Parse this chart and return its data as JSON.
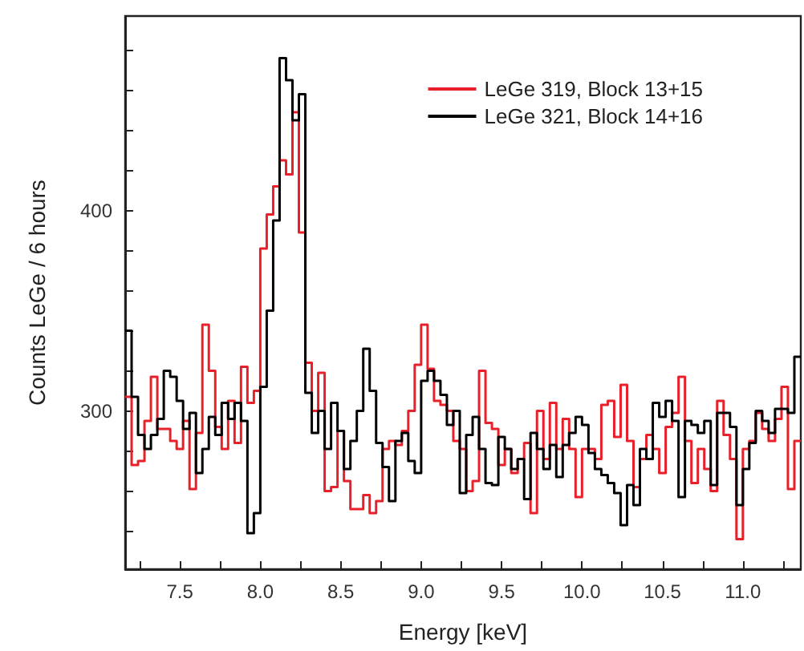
{
  "chart_data": {
    "type": "histogram",
    "xlabel": "Energy [keV]",
    "ylabel": "Counts LeGe / 6 hours",
    "bins": [
      7.16,
      7.2,
      7.24,
      7.28,
      7.32,
      7.36,
      7.4,
      7.44,
      7.48,
      7.52,
      7.56,
      7.6,
      7.64,
      7.68,
      7.72,
      7.76,
      7.8,
      7.84,
      7.88,
      7.92,
      7.96,
      8,
      8.04,
      8.08,
      8.12,
      8.16,
      8.2,
      8.24,
      8.28,
      8.32,
      8.36,
      8.4,
      8.44,
      8.48,
      8.52,
      8.56,
      8.6,
      8.64,
      8.68,
      8.72,
      8.76,
      8.8,
      8.84,
      8.88,
      8.92,
      8.96,
      9,
      9.04,
      9.08,
      9.12,
      9.16,
      9.2,
      9.24,
      9.28,
      9.32,
      9.36,
      9.4,
      9.44,
      9.48,
      9.52,
      9.56,
      9.6,
      9.64,
      9.68,
      9.72,
      9.76,
      9.8,
      9.84,
      9.88,
      9.92,
      9.96,
      10,
      10.04,
      10.08,
      10.12,
      10.16,
      10.2,
      10.24,
      10.28,
      10.32,
      10.36,
      10.4,
      10.44,
      10.48,
      10.52,
      10.56,
      10.6,
      10.64,
      10.68,
      10.72,
      10.76,
      10.8,
      10.84,
      10.88,
      10.92,
      10.96,
      11,
      11.04,
      11.08,
      11.12,
      11.16,
      11.2,
      11.24,
      11.28,
      11.32,
      11.36
    ],
    "series": [
      {
        "name": "LeGe 319, Block 13+15",
        "color": "#e8202a",
        "values": [
          307,
          273,
          275,
          295,
          317,
          291,
          291,
          285,
          281,
          295,
          261,
          289,
          343,
          320,
          292,
          281,
          305,
          284,
          322,
          304,
          310,
          381,
          398,
          412,
          425,
          418,
          449,
          389,
          324,
          300,
          319,
          260,
          262,
          290,
          265,
          251,
          251,
          258,
          249,
          255,
          281,
          285,
          283,
          290,
          300,
          323,
          343,
          321,
          305,
          303,
          300,
          285,
          281,
          260,
          265,
          320,
          294,
          291,
          273,
          281,
          269,
          276,
          284,
          249,
          300,
          276,
          304,
          281,
          296,
          281,
          257,
          281,
          281,
          276,
          303,
          305,
          287,
          313,
          285,
          262,
          276,
          288,
          281,
          269,
          292,
          299,
          317,
          285,
          264,
          281,
          271,
          260,
          305,
          288,
          276,
          236,
          281,
          285,
          299,
          291,
          285,
          296,
          312,
          261,
          285
        ]
      },
      {
        "name": "LeGe 321, Block 14+16",
        "color": "#000000",
        "values": [
          340,
          307,
          288,
          281,
          288,
          296,
          320,
          317,
          305,
          291,
          299,
          269,
          281,
          297,
          288,
          304,
          296,
          304,
          295,
          239,
          249,
          312,
          350,
          395,
          476,
          465,
          445,
          458,
          309,
          289,
          300,
          281,
          304,
          290,
          271,
          285,
          300,
          331,
          310,
          284,
          272,
          255,
          285,
          289,
          275,
          269,
          315,
          320,
          315,
          308,
          293,
          300,
          259,
          288,
          297,
          281,
          264,
          263,
          287,
          281,
          271,
          276,
          256,
          289,
          281,
          271,
          283,
          267,
          283,
          289,
          297,
          293,
          279,
          271,
          268,
          264,
          259,
          243,
          263,
          253,
          281,
          276,
          304,
          297,
          305,
          295,
          257,
          295,
          293,
          289,
          295,
          263,
          299,
          299,
          292,
          253,
          271,
          284,
          300,
          295,
          289,
          301,
          301,
          299,
          327
        ]
      }
    ],
    "xlim": [
      7.16,
      11.36
    ],
    "xticks": [
      {
        "value": 7.25,
        "label": null
      },
      7.5,
      {
        "value": 7.75,
        "label": null
      },
      {
        "value": 8,
        "label": "8.0"
      },
      {
        "value": 8.25,
        "label": null
      },
      8.5,
      {
        "value": 8.75,
        "label": null
      },
      {
        "value": 9,
        "label": "9.0"
      },
      {
        "value": 9.25,
        "label": null
      },
      9.5,
      {
        "value": 9.75,
        "label": null
      },
      {
        "value": 10,
        "label": "10.0"
      },
      {
        "value": 10.25,
        "label": null
      },
      10.5,
      {
        "value": 10.75,
        "label": null
      },
      {
        "value": 11,
        "label": "11.0"
      },
      {
        "value": 11.25,
        "label": null
      }
    ],
    "ylim": [
      221,
      497
    ],
    "yticks": [
      {
        "value": 240,
        "label": null
      },
      {
        "value": 260,
        "label": null
      },
      {
        "value": 280,
        "label": null
      },
      300,
      {
        "value": 320,
        "label": null
      },
      {
        "value": 340,
        "label": null
      },
      {
        "value": 360,
        "label": null
      },
      {
        "value": 380,
        "label": null
      },
      400,
      {
        "value": 420,
        "label": null
      },
      {
        "value": 440,
        "label": null
      },
      {
        "value": 460,
        "label": null
      },
      {
        "value": 480,
        "label": null
      }
    ],
    "legend": "top right",
    "grid": false
  }
}
